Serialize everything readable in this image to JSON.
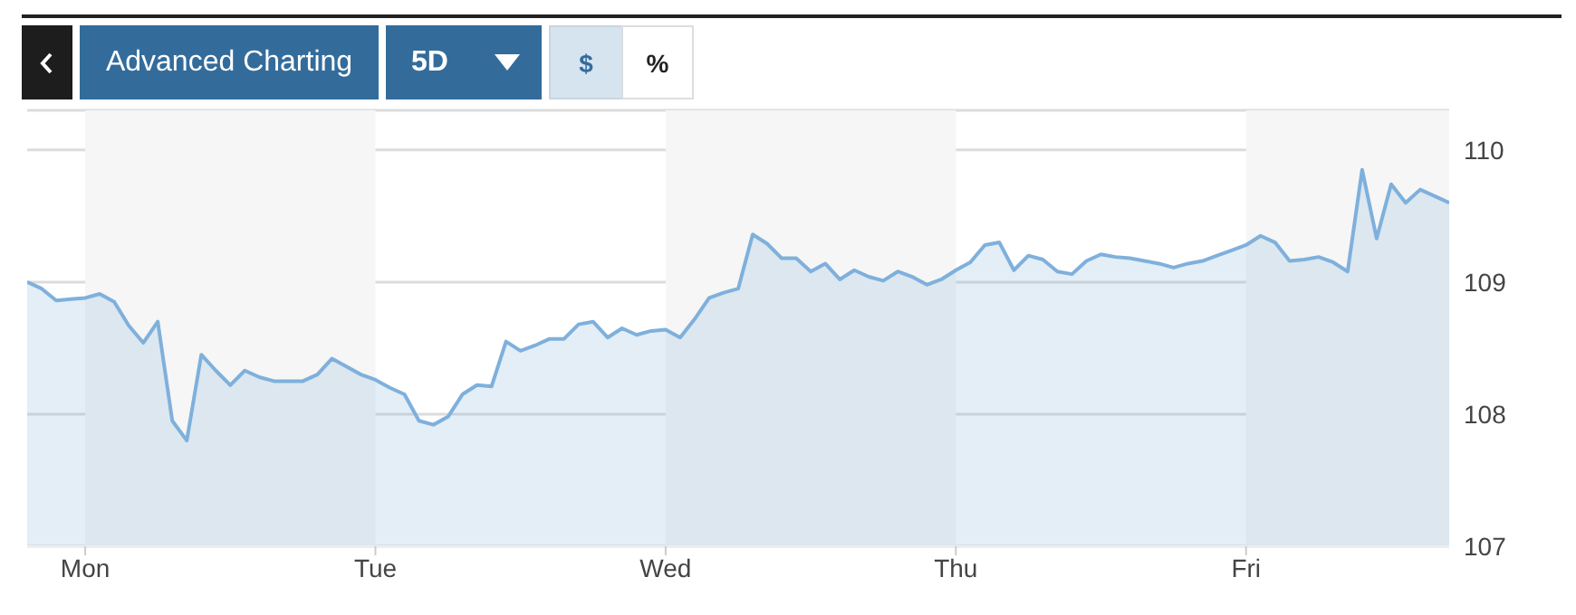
{
  "chart_data": {
    "type": "area",
    "annotations": [
      "Advanced Charting",
      "5D",
      "$",
      "%"
    ],
    "categories": [
      null,
      null,
      null,
      null,
      "Mon",
      null,
      null,
      null,
      null,
      null,
      null,
      null,
      null,
      null,
      null,
      null,
      null,
      null,
      null,
      null,
      null,
      null,
      null,
      null,
      "Tue",
      null,
      null,
      null,
      null,
      null,
      null,
      null,
      null,
      null,
      null,
      null,
      null,
      null,
      null,
      null,
      null,
      null,
      null,
      null,
      "Wed",
      null,
      null,
      null,
      null,
      null,
      null,
      null,
      null,
      null,
      null,
      null,
      null,
      null,
      null,
      null,
      null,
      null,
      null,
      null,
      "Thu",
      null,
      null,
      null,
      null,
      null,
      null,
      null,
      null,
      null,
      null,
      null,
      null,
      null,
      null,
      null,
      null,
      null,
      null,
      null,
      "Fri",
      null,
      null,
      null,
      null,
      null,
      null,
      null,
      null,
      null,
      null,
      null,
      null,
      null,
      null
    ],
    "series": [
      {
        "color": "#7fb0dc",
        "values": [
          109.0,
          108.95,
          108.86,
          108.87,
          108.88,
          108.91,
          108.85,
          108.67,
          108.54,
          108.7,
          107.95,
          107.8,
          108.45,
          108.33,
          108.22,
          108.33,
          108.28,
          108.25,
          108.25,
          108.25,
          108.3,
          108.42,
          108.36,
          108.3,
          108.26,
          108.2,
          108.15,
          107.95,
          107.92,
          107.98,
          108.15,
          108.22,
          108.21,
          108.55,
          108.48,
          108.52,
          108.57,
          108.57,
          108.68,
          108.7,
          108.58,
          108.65,
          108.6,
          108.63,
          108.64,
          108.58,
          108.72,
          108.88,
          108.92,
          108.95,
          109.36,
          109.29,
          109.18,
          109.18,
          109.08,
          109.14,
          109.02,
          109.09,
          109.04,
          109.01,
          109.08,
          109.04,
          108.98,
          109.02,
          109.09,
          109.15,
          109.28,
          109.3,
          109.09,
          109.2,
          109.17,
          109.08,
          109.06,
          109.16,
          109.21,
          109.19,
          109.18,
          109.16,
          109.14,
          109.11,
          109.14,
          109.16,
          109.2,
          109.24,
          109.28,
          109.35,
          109.3,
          109.16,
          109.17,
          109.19,
          109.15,
          109.08,
          109.85,
          109.33,
          109.74,
          109.6,
          109.7,
          109.65,
          109.6
        ]
      }
    ],
    "ylim": [
      107,
      110.3
    ],
    "yticks": [
      107,
      108,
      109,
      110
    ],
    "grid": "y"
  }
}
